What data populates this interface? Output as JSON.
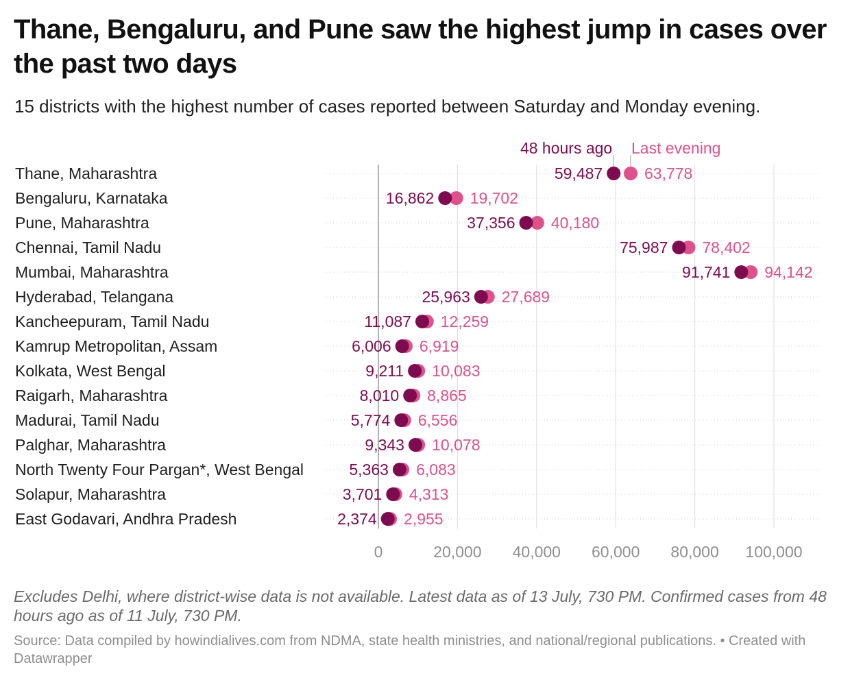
{
  "title": "Thane, Bengaluru, and Pune saw the highest jump in cases over the past two days",
  "subtitle": "15 districts with the highest number of cases reported between Saturday and Monday evening.",
  "notes": "Excludes Delhi, where district-wise data is not available. Latest data as of 13 July, 730 PM. Confirmed cases from 48 hours ago as of 11 July, 730 PM.",
  "source": "Source: Data compiled by howindialives.com from NDMA, state health ministries, and national/regional publications. • Created with Datawrapper",
  "colors": {
    "series_48h": "#7e0b4f",
    "series_last": "#e0508b",
    "axis": "#888888",
    "grid": "#dddddd"
  },
  "chart_data": {
    "type": "dot",
    "categories": [
      "Thane, Maharashtra",
      "Bengaluru, Karnataka",
      "Pune, Maharashtra",
      "Chennai, Tamil Nadu",
      "Mumbai, Maharashtra",
      "Hyderabad, Telangana",
      "Kancheepuram, Tamil Nadu",
      "Kamrup Metropolitan, Assam",
      "Kolkata, West Bengal",
      "Raigarh, Maharashtra",
      "Madurai, Tamil Nadu",
      "Palghar, Maharashtra",
      "North Twenty Four Pargan*, West Bengal",
      "Solapur, Maharashtra",
      "East Godavari, Andhra Pradesh"
    ],
    "series": [
      {
        "name": "48 hours ago",
        "values": [
          59487,
          16862,
          37356,
          75987,
          91741,
          25963,
          11087,
          6006,
          9211,
          8010,
          5774,
          9343,
          5363,
          3701,
          2374
        ],
        "labels": [
          "59,487",
          "16,862",
          "37,356",
          "75,987",
          "91,741",
          "25,963",
          "11,087",
          "6,006",
          "9,211",
          "8,010",
          "5,774",
          "9,343",
          "5,363",
          "3,701",
          "2,374"
        ]
      },
      {
        "name": "Last evening",
        "values": [
          63778,
          19702,
          40180,
          78402,
          94142,
          27689,
          12259,
          6919,
          10083,
          8865,
          6556,
          10078,
          6083,
          4313,
          2955
        ],
        "labels": [
          "63,778",
          "19,702",
          "40,180",
          "78,402",
          "94,142",
          "27,689",
          "12,259",
          "6,919",
          "10,083",
          "8,865",
          "6,556",
          "10,078",
          "6,083",
          "4,313",
          "2,955"
        ]
      }
    ],
    "x_ticks": [
      0,
      20000,
      40000,
      60000,
      80000,
      100000
    ],
    "x_tick_labels": [
      "0",
      "20,000",
      "40,000",
      "60,000",
      "80,000",
      "100,000"
    ],
    "xlim": [
      0,
      100000
    ],
    "grid": true,
    "legend_placement": "top, annotated above first row"
  }
}
